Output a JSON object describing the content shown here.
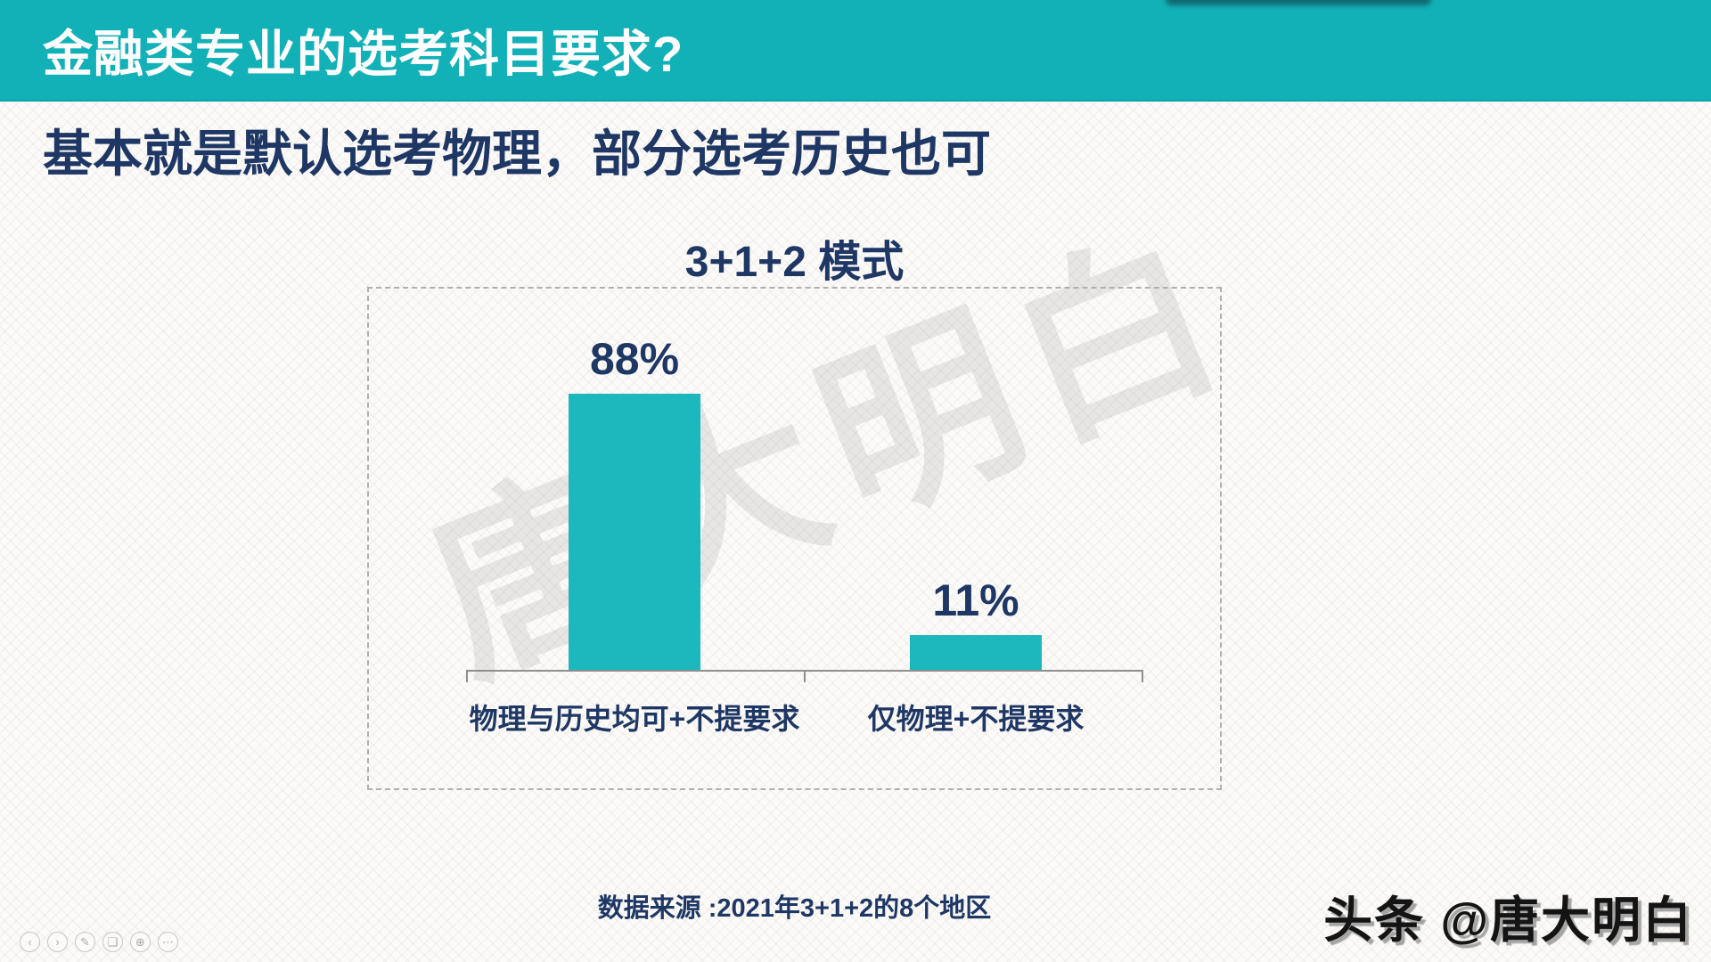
{
  "header": {
    "title": "金融类专业的选考科目要求?",
    "bg_color": "#12b1b8",
    "text_color": "#ffffff"
  },
  "subtitle": "基本就是默认选考物理，部分选考历史也可",
  "colors": {
    "accent_teal": "#12b1b8",
    "navy_text": "#1e3765",
    "bar_teal": "#1cb8bd",
    "background": "#fbfaf8"
  },
  "chart_data": {
    "type": "bar",
    "title": "3+1+2 模式",
    "categories": [
      "物理与历史均可+不提要求",
      "仅物理+不提要求"
    ],
    "values": [
      88,
      11
    ],
    "value_labels": [
      "88%",
      "11%"
    ],
    "ylim": [
      0,
      100
    ],
    "grid": false,
    "legend": "none",
    "bar_color": "#1cb8bd",
    "source_note": "数据来源 :2021年3+1+2的8个地区"
  },
  "watermarks": {
    "diagonal_text": "唐大明白",
    "credit_text": "头条 @唐大明白"
  },
  "toolbar": {
    "icons": [
      {
        "name": "previous-slide-icon",
        "glyph": "‹"
      },
      {
        "name": "next-slide-icon",
        "glyph": "›"
      },
      {
        "name": "pen-icon",
        "glyph": "✎"
      },
      {
        "name": "slides-panel-icon",
        "glyph": "❑"
      },
      {
        "name": "magnifier-icon",
        "glyph": "⊕"
      },
      {
        "name": "more-tools-icon",
        "glyph": "⋯"
      }
    ]
  }
}
